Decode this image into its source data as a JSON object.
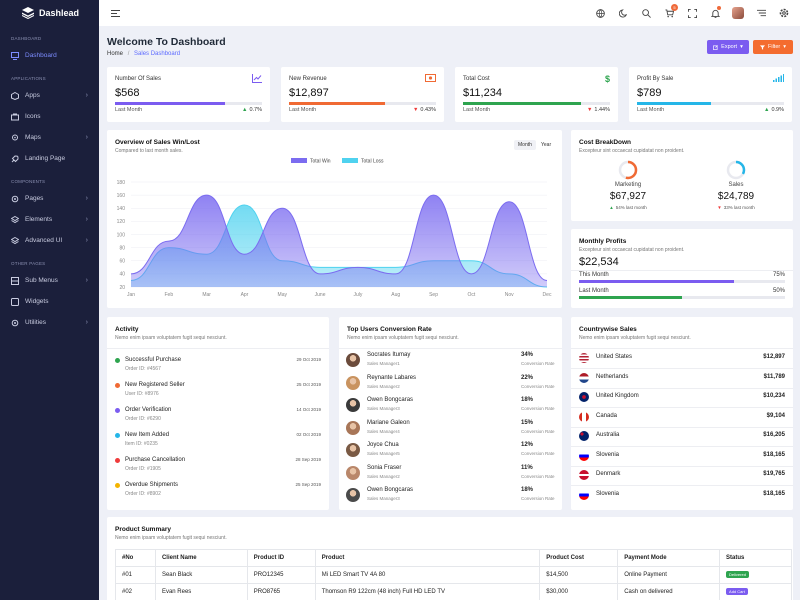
{
  "brand": "Dashlead",
  "sidebar": {
    "sections": [
      "DASHBOARD",
      "APPLICATIONS",
      "COMPONENTS",
      "OTHER PAGES"
    ],
    "items": [
      {
        "label": "Dashboard",
        "icon": "monitor-icon"
      },
      {
        "label": "Apps",
        "icon": "cube-icon"
      },
      {
        "label": "Icons",
        "icon": "briefcase-icon"
      },
      {
        "label": "Maps",
        "icon": "map-pin-icon"
      },
      {
        "label": "Landing Page",
        "icon": "rocket-icon"
      },
      {
        "label": "Pages",
        "icon": "settings-icon"
      },
      {
        "label": "Elements",
        "icon": "layers-icon"
      },
      {
        "label": "Advanced UI",
        "icon": "layers-icon"
      },
      {
        "label": "Sub Menus",
        "icon": "grid-icon"
      },
      {
        "label": "Widgets",
        "icon": "widgets-icon"
      },
      {
        "label": "Utilities",
        "icon": "settings-icon"
      }
    ]
  },
  "header": {
    "cart_count": "5"
  },
  "page": {
    "title": "Welcome To Dashboard",
    "crumb_home": "Home",
    "crumb_current": "Sales Dashboard",
    "export": "Export",
    "filter": "Filter"
  },
  "stats": [
    {
      "label": "Number Of Sales",
      "value": "$568",
      "sub": "Last Month",
      "change": "0.7%",
      "dir": "up",
      "color": "#7b5cf0",
      "progress": 0.75,
      "icon": "chart-line-icon"
    },
    {
      "label": "New Revenue",
      "value": "$12,897",
      "sub": "Last Month",
      "change": "0.43%",
      "dir": "down",
      "color": "#f06a34",
      "progress": 0.65,
      "icon": "money-icon"
    },
    {
      "label": "Total Cost",
      "value": "$11,234",
      "sub": "Last Month",
      "change": "1.44%",
      "dir": "down",
      "color": "#2ea44f",
      "progress": 0.8,
      "icon": "dollar-icon"
    },
    {
      "label": "Profit By Sale",
      "value": "$789",
      "sub": "Last Month",
      "change": "0.9%",
      "dir": "up",
      "color": "#25b6e8",
      "progress": 0.5,
      "icon": "signal-icon"
    }
  ],
  "overview": {
    "title": "Overview of Sales Win/Lost",
    "sub": "Compared to last month sales.",
    "tab_month": "Month",
    "tab_year": "Year"
  },
  "chart_data": {
    "type": "area",
    "categories": [
      "Jan",
      "Feb",
      "Mar",
      "Apr",
      "May",
      "June",
      "July",
      "Aug",
      "Sep",
      "Oct",
      "Nov",
      "Dec"
    ],
    "series": [
      {
        "name": "Total Win",
        "values": [
          40,
          90,
          160,
          70,
          140,
          40,
          50,
          40,
          160,
          40,
          150,
          30
        ],
        "color": "#7b6cf0"
      },
      {
        "name": "Total Loss",
        "values": [
          30,
          80,
          70,
          145,
          60,
          50,
          50,
          50,
          60,
          60,
          40,
          20
        ],
        "color": "#4fd2ef"
      }
    ],
    "yticks": [
      20,
      40,
      60,
      80,
      100,
      120,
      140,
      160,
      180
    ],
    "ylim": [
      20,
      180
    ],
    "legend": "top"
  },
  "cost": {
    "title": "Cost BreakDown",
    "sub": "Excepteur sint occaecat cupidatat non proident.",
    "items": [
      {
        "label": "Marketing",
        "value": "$67,927",
        "change": "54% last month",
        "dir": "up",
        "pct": 0.54,
        "color": "#f06a34"
      },
      {
        "label": "Sales",
        "value": "$24,789",
        "change": "33% last month",
        "dir": "down",
        "pct": 0.33,
        "color": "#25b6e8"
      }
    ]
  },
  "profits": {
    "title": "Monthly Profits",
    "sub": "Excepteur sint occaecat cupidatat non proident.",
    "value": "$22,534",
    "rows": [
      {
        "label": "This Month",
        "pct": "75%",
        "frac": 0.75,
        "color": "#7b5cf0"
      },
      {
        "label": "Last Month",
        "pct": "50%",
        "frac": 0.5,
        "color": "#2ea44f"
      }
    ]
  },
  "activity": {
    "title": "Activity",
    "sub": "Nemo enim ipsam voluptatem fugit sequi nesciunt.",
    "items": [
      {
        "title": "Successful Purchase",
        "meta": "Order ID: #4567",
        "date": "29 Oct 2019",
        "color": "#2ea44f"
      },
      {
        "title": "New Registered Seller",
        "meta": "User ID: #8976",
        "date": "25 Oct 2019",
        "color": "#f06a34"
      },
      {
        "title": "Order Verification",
        "meta": "Order ID: #6290",
        "date": "14 Oct 2019",
        "color": "#7b5cf0"
      },
      {
        "title": "New Item Added",
        "meta": "Item ID: #0235",
        "date": "02 Oct 2019",
        "color": "#25b6e8"
      },
      {
        "title": "Purchase Cancellation",
        "meta": "Order ID: #1905",
        "date": "28 Sep 2019",
        "color": "#ef3b3b"
      },
      {
        "title": "Overdue Shipments",
        "meta": "Order ID: #8902",
        "date": "25 Sep 2019",
        "color": "#f4b400"
      }
    ]
  },
  "conversion": {
    "title": "Top Users Conversion Rate",
    "sub": "Nemo enim ipsam voluptatem fugit sequi nesciunt.",
    "rate_label": "Conversion Rate",
    "users": [
      {
        "name": "Socrates Itumay",
        "role": "Sales Manager1",
        "rate": "34%"
      },
      {
        "name": "Reynante Labares",
        "role": "Sales Manager2",
        "rate": "22%"
      },
      {
        "name": "Owen Bongcaras",
        "role": "Sales Manager3",
        "rate": "18%"
      },
      {
        "name": "Mariane Galeon",
        "role": "Sales Manager4",
        "rate": "15%"
      },
      {
        "name": "Joyce Chua",
        "role": "Sales Manager5",
        "rate": "12%"
      },
      {
        "name": "Sonia Fraser",
        "role": "Sales Manager2",
        "rate": "11%"
      },
      {
        "name": "Owen Bongcaras",
        "role": "Sales Manager3",
        "rate": "18%"
      }
    ]
  },
  "countries": {
    "title": "Countrywise Sales",
    "sub": "Nemo enim ipsam voluptatem fugit sequi nesciunt.",
    "rows": [
      {
        "name": "United States",
        "value": "$12,897"
      },
      {
        "name": "Netherlands",
        "value": "$11,789"
      },
      {
        "name": "United Kingdom",
        "value": "$10,234"
      },
      {
        "name": "Canada",
        "value": "$9,104"
      },
      {
        "name": "Australia",
        "value": "$16,205"
      },
      {
        "name": "Slovenia",
        "value": "$18,165"
      },
      {
        "name": "Denmark",
        "value": "$19,765"
      },
      {
        "name": "Slovenia",
        "value": "$18,165"
      }
    ]
  },
  "product": {
    "title": "Product Summary",
    "sub": "Nemo enim ipsam voluptatem fugit sequi nesciunt.",
    "headers": [
      "#No",
      "Client Name",
      "Product ID",
      "Product",
      "Product Cost",
      "Payment Mode",
      "Status"
    ],
    "rows": [
      [
        "#01",
        "Sean Black",
        "PRO12345",
        "Mi LED Smart TV 4A 80",
        "$14,500",
        "Online Payment",
        "Delivered"
      ],
      [
        "#02",
        "Evan Rees",
        "PRO8765",
        "Thomson R9 122cm (48 inch) Full HD LED TV",
        "$30,000",
        "Cash on delivered",
        "Add Cart"
      ]
    ],
    "status_colors": [
      "#2ea44f",
      "#7b5cf0"
    ]
  }
}
